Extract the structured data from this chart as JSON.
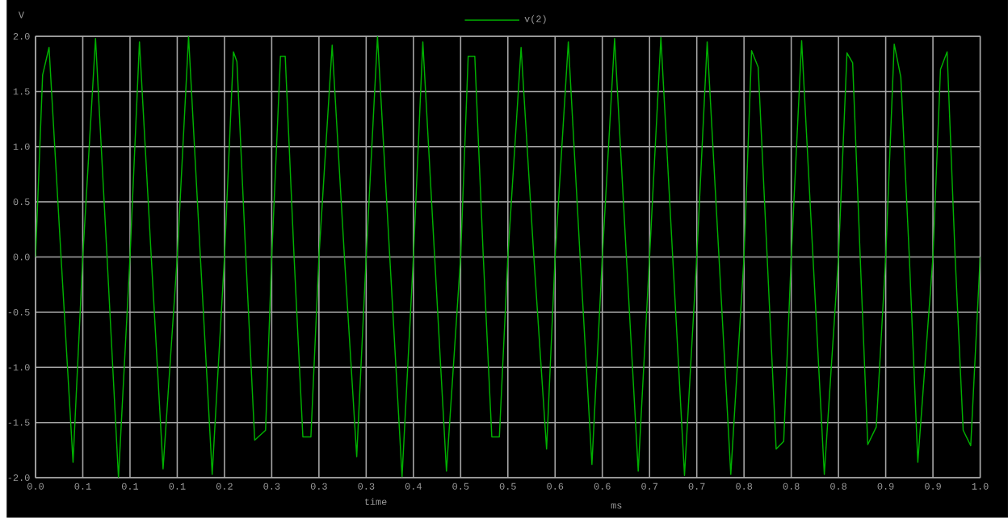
{
  "chart_data": {
    "type": "line",
    "xlabel": "time",
    "ylabel": "V",
    "annotations": [
      "ms"
    ],
    "xlim": [
      0,
      1.0
    ],
    "ylim": [
      -2.0,
      2.0
    ],
    "xticks": [
      {
        "value": 0,
        "label": "0.0"
      },
      {
        "value": 0.05,
        "label": "0.1"
      },
      {
        "value": 0.1,
        "label": "0.1"
      },
      {
        "value": 0.15,
        "label": "0.1"
      },
      {
        "value": 0.2,
        "label": "0.2"
      },
      {
        "value": 0.25,
        "label": "0.3"
      },
      {
        "value": 0.3,
        "label": "0.3"
      },
      {
        "value": 0.35,
        "label": "0.3"
      },
      {
        "value": 0.4,
        "label": "0.4"
      },
      {
        "value": 0.45,
        "label": "0.5"
      },
      {
        "value": 0.5,
        "label": "0.5"
      },
      {
        "value": 0.55,
        "label": "0.6"
      },
      {
        "value": 0.6,
        "label": "0.6"
      },
      {
        "value": 0.65,
        "label": "0.7"
      },
      {
        "value": 0.7,
        "label": "0.7"
      },
      {
        "value": 0.75,
        "label": "0.8"
      },
      {
        "value": 0.8,
        "label": "0.8"
      },
      {
        "value": 0.85,
        "label": "0.8"
      },
      {
        "value": 0.9,
        "label": "0.9"
      },
      {
        "value": 0.95,
        "label": "0.9"
      },
      {
        "value": 1.0,
        "label": "1.0"
      }
    ],
    "yticks": [
      {
        "value": -2,
        "label": "-2.0"
      },
      {
        "value": -1.5,
        "label": "-1.5"
      },
      {
        "value": -1,
        "label": "-1.0"
      },
      {
        "value": -0.5,
        "label": "-0.5"
      },
      {
        "value": 0,
        "label": "0.0"
      },
      {
        "value": 0.5,
        "label": "0.5"
      },
      {
        "value": 1,
        "label": "1.0"
      },
      {
        "value": 1.5,
        "label": "1.5"
      },
      {
        "value": 2,
        "label": "2.0"
      }
    ],
    "grid": true,
    "legend": "top",
    "marker": "none",
    "line_style": "solid",
    "series": [
      {
        "name": "v(2)",
        "color": "#00b000",
        "x": [
          0,
          0.0075,
          0.0143,
          0.027,
          0.0397,
          0.05,
          0.0635,
          0.0757,
          0.0878,
          0.1,
          0.11,
          0.1225,
          0.135,
          0.15,
          0.162,
          0.1745,
          0.187,
          0.2,
          0.2095,
          0.2132,
          0.2226,
          0.232,
          0.2435,
          0.25,
          0.2593,
          0.2643,
          0.2737,
          0.283,
          0.2915,
          0.3,
          0.314,
          0.327,
          0.34,
          0.35,
          0.362,
          0.375,
          0.388,
          0.4,
          0.41,
          0.4225,
          0.435,
          0.45,
          0.458,
          0.465,
          0.474,
          0.483,
          0.491,
          0.5,
          0.514,
          0.5275,
          0.541,
          0.55,
          0.564,
          0.5765,
          0.589,
          0.6,
          0.613,
          0.6255,
          0.638,
          0.65,
          0.662,
          0.6745,
          0.687,
          0.7,
          0.711,
          0.7235,
          0.736,
          0.75,
          0.758,
          0.765,
          0.7745,
          0.784,
          0.792,
          0.8,
          0.811,
          0.823,
          0.835,
          0.85,
          0.859,
          0.865,
          0.873,
          0.881,
          0.89,
          0.9,
          0.909,
          0.916,
          0.925,
          0.934,
          0.95,
          0.958,
          0.965,
          0.9735,
          0.982,
          0.99,
          1.0
        ],
        "values": [
          0,
          1.65,
          1.9,
          0,
          -1.86,
          0,
          1.98,
          0,
          -2.0,
          0,
          1.95,
          0,
          -1.92,
          0,
          2.0,
          0,
          -1.97,
          0,
          1.86,
          1.77,
          0,
          -1.66,
          -1.57,
          0,
          1.82,
          1.82,
          0,
          -1.63,
          -1.63,
          0,
          1.92,
          0,
          -1.81,
          0,
          2.0,
          0,
          -1.99,
          0,
          1.95,
          0,
          -1.94,
          0,
          1.82,
          1.82,
          0,
          -1.63,
          -1.63,
          0,
          1.9,
          0,
          -1.74,
          0,
          1.95,
          0,
          -1.88,
          0,
          1.98,
          0,
          -1.94,
          0,
          1.99,
          0,
          -1.98,
          0,
          1.95,
          0,
          -1.97,
          0,
          1.87,
          1.72,
          0,
          -1.74,
          -1.67,
          0,
          1.96,
          0,
          -1.97,
          0,
          1.85,
          1.76,
          0,
          -1.7,
          -1.54,
          0,
          1.93,
          1.63,
          0,
          -1.86,
          0,
          1.7,
          1.86,
          0,
          -1.57,
          -1.71,
          0
        ]
      }
    ]
  }
}
